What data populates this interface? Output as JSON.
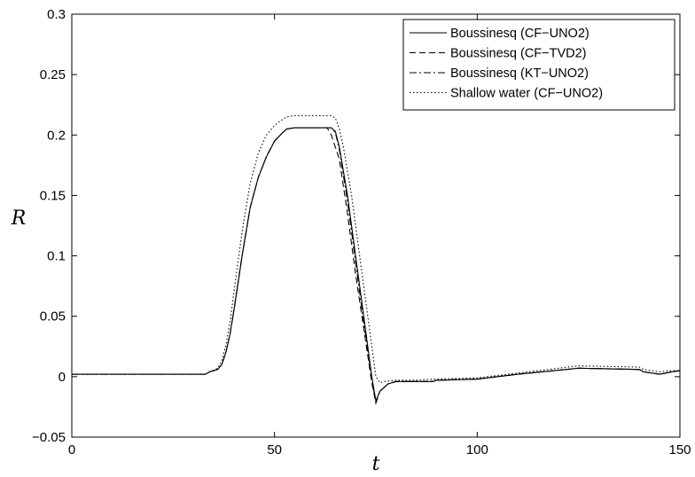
{
  "chart_data": {
    "type": "line",
    "title": "",
    "xlabel": "t",
    "ylabel": "R",
    "xlim": [
      0,
      150
    ],
    "ylim": [
      -0.05,
      0.3
    ],
    "xticks": [
      0,
      50,
      100,
      150
    ],
    "xtick_labels": [
      "0",
      "50",
      "100",
      "150"
    ],
    "yticks": [
      -0.05,
      0,
      0.05,
      0.1,
      0.15,
      0.2,
      0.25,
      0.3
    ],
    "ytick_labels": [
      "−0.05",
      "0",
      "0.05",
      "0.1",
      "0.15",
      "0.2",
      "0.25",
      "0.3"
    ],
    "grid": false,
    "legend_position": "top-right",
    "series": [
      {
        "name": "Boussinesq (CF−UNO2)",
        "style": "solid",
        "color": "#000000",
        "x": [
          0,
          33,
          34,
          36,
          37,
          38,
          39,
          40,
          42,
          44,
          46,
          48,
          50,
          52,
          53,
          55,
          58,
          60,
          62,
          64,
          65,
          66,
          68,
          70,
          72,
          74,
          75,
          76,
          78,
          80,
          85,
          89,
          90,
          100,
          110,
          125,
          140,
          141,
          145,
          148,
          150
        ],
        "y": [
          0.002,
          0.002,
          0.004,
          0.006,
          0.01,
          0.02,
          0.035,
          0.055,
          0.1,
          0.14,
          0.165,
          0.182,
          0.195,
          0.202,
          0.205,
          0.206,
          0.206,
          0.206,
          0.206,
          0.206,
          0.203,
          0.19,
          0.15,
          0.1,
          0.05,
          0.0,
          -0.02,
          -0.012,
          -0.006,
          -0.004,
          -0.004,
          -0.004,
          -0.003,
          -0.002,
          0.002,
          0.007,
          0.006,
          0.004,
          0.002,
          0.004,
          0.005
        ]
      },
      {
        "name": "Boussinesq (CF−TVD2)",
        "style": "dashed",
        "color": "#000000",
        "x": [
          0,
          33,
          34,
          36,
          37,
          38,
          39,
          40,
          42,
          44,
          46,
          48,
          50,
          52,
          53,
          55,
          58,
          60,
          62,
          63,
          64,
          66,
          68,
          70,
          72,
          74,
          75,
          76,
          78,
          80,
          85,
          89,
          90,
          100,
          110,
          125,
          140,
          141,
          145,
          148,
          150
        ],
        "y": [
          0.002,
          0.002,
          0.004,
          0.006,
          0.01,
          0.02,
          0.035,
          0.055,
          0.1,
          0.14,
          0.165,
          0.182,
          0.195,
          0.202,
          0.205,
          0.206,
          0.206,
          0.206,
          0.206,
          0.206,
          0.2,
          0.18,
          0.135,
          0.085,
          0.04,
          -0.005,
          -0.022,
          -0.012,
          -0.006,
          -0.004,
          -0.004,
          -0.004,
          -0.003,
          -0.002,
          0.002,
          0.007,
          0.006,
          0.004,
          0.002,
          0.004,
          0.005
        ]
      },
      {
        "name": "Boussinesq (KT−UNO2)",
        "style": "dashdot",
        "color": "#000000",
        "x": [
          0,
          33,
          34,
          36,
          37,
          38,
          39,
          40,
          42,
          44,
          46,
          48,
          50,
          52,
          53,
          55,
          58,
          60,
          62,
          64,
          65,
          66,
          68,
          70,
          72,
          74,
          75,
          76,
          78,
          80,
          85,
          89,
          90,
          100,
          110,
          125,
          140,
          141,
          145,
          148,
          150
        ],
        "y": [
          0.002,
          0.002,
          0.004,
          0.006,
          0.01,
          0.02,
          0.035,
          0.055,
          0.1,
          0.14,
          0.165,
          0.182,
          0.195,
          0.202,
          0.205,
          0.206,
          0.206,
          0.206,
          0.206,
          0.206,
          0.202,
          0.188,
          0.145,
          0.095,
          0.045,
          -0.002,
          -0.021,
          -0.012,
          -0.006,
          -0.004,
          -0.004,
          -0.004,
          -0.003,
          -0.002,
          0.002,
          0.007,
          0.006,
          0.004,
          0.002,
          0.004,
          0.005
        ]
      },
      {
        "name": "Shallow water (CF−UNO2)",
        "style": "dotted",
        "color": "#000000",
        "x": [
          0,
          33,
          34,
          36,
          37,
          38,
          39,
          40,
          42,
          44,
          46,
          48,
          50,
          52,
          53,
          55,
          58,
          60,
          62,
          64,
          65,
          66,
          67,
          69,
          71,
          73,
          75,
          76,
          77,
          80,
          85,
          89,
          90,
          100,
          110,
          125,
          140,
          141,
          145,
          148,
          150
        ],
        "y": [
          0.002,
          0.002,
          0.004,
          0.007,
          0.013,
          0.026,
          0.045,
          0.07,
          0.12,
          0.16,
          0.185,
          0.2,
          0.208,
          0.213,
          0.215,
          0.216,
          0.216,
          0.216,
          0.216,
          0.216,
          0.214,
          0.205,
          0.19,
          0.15,
          0.1,
          0.05,
          0.0,
          -0.005,
          -0.004,
          -0.003,
          -0.003,
          -0.002,
          -0.002,
          -0.001,
          0.003,
          0.009,
          0.008,
          0.006,
          0.004,
          0.005,
          0.005
        ]
      }
    ]
  }
}
